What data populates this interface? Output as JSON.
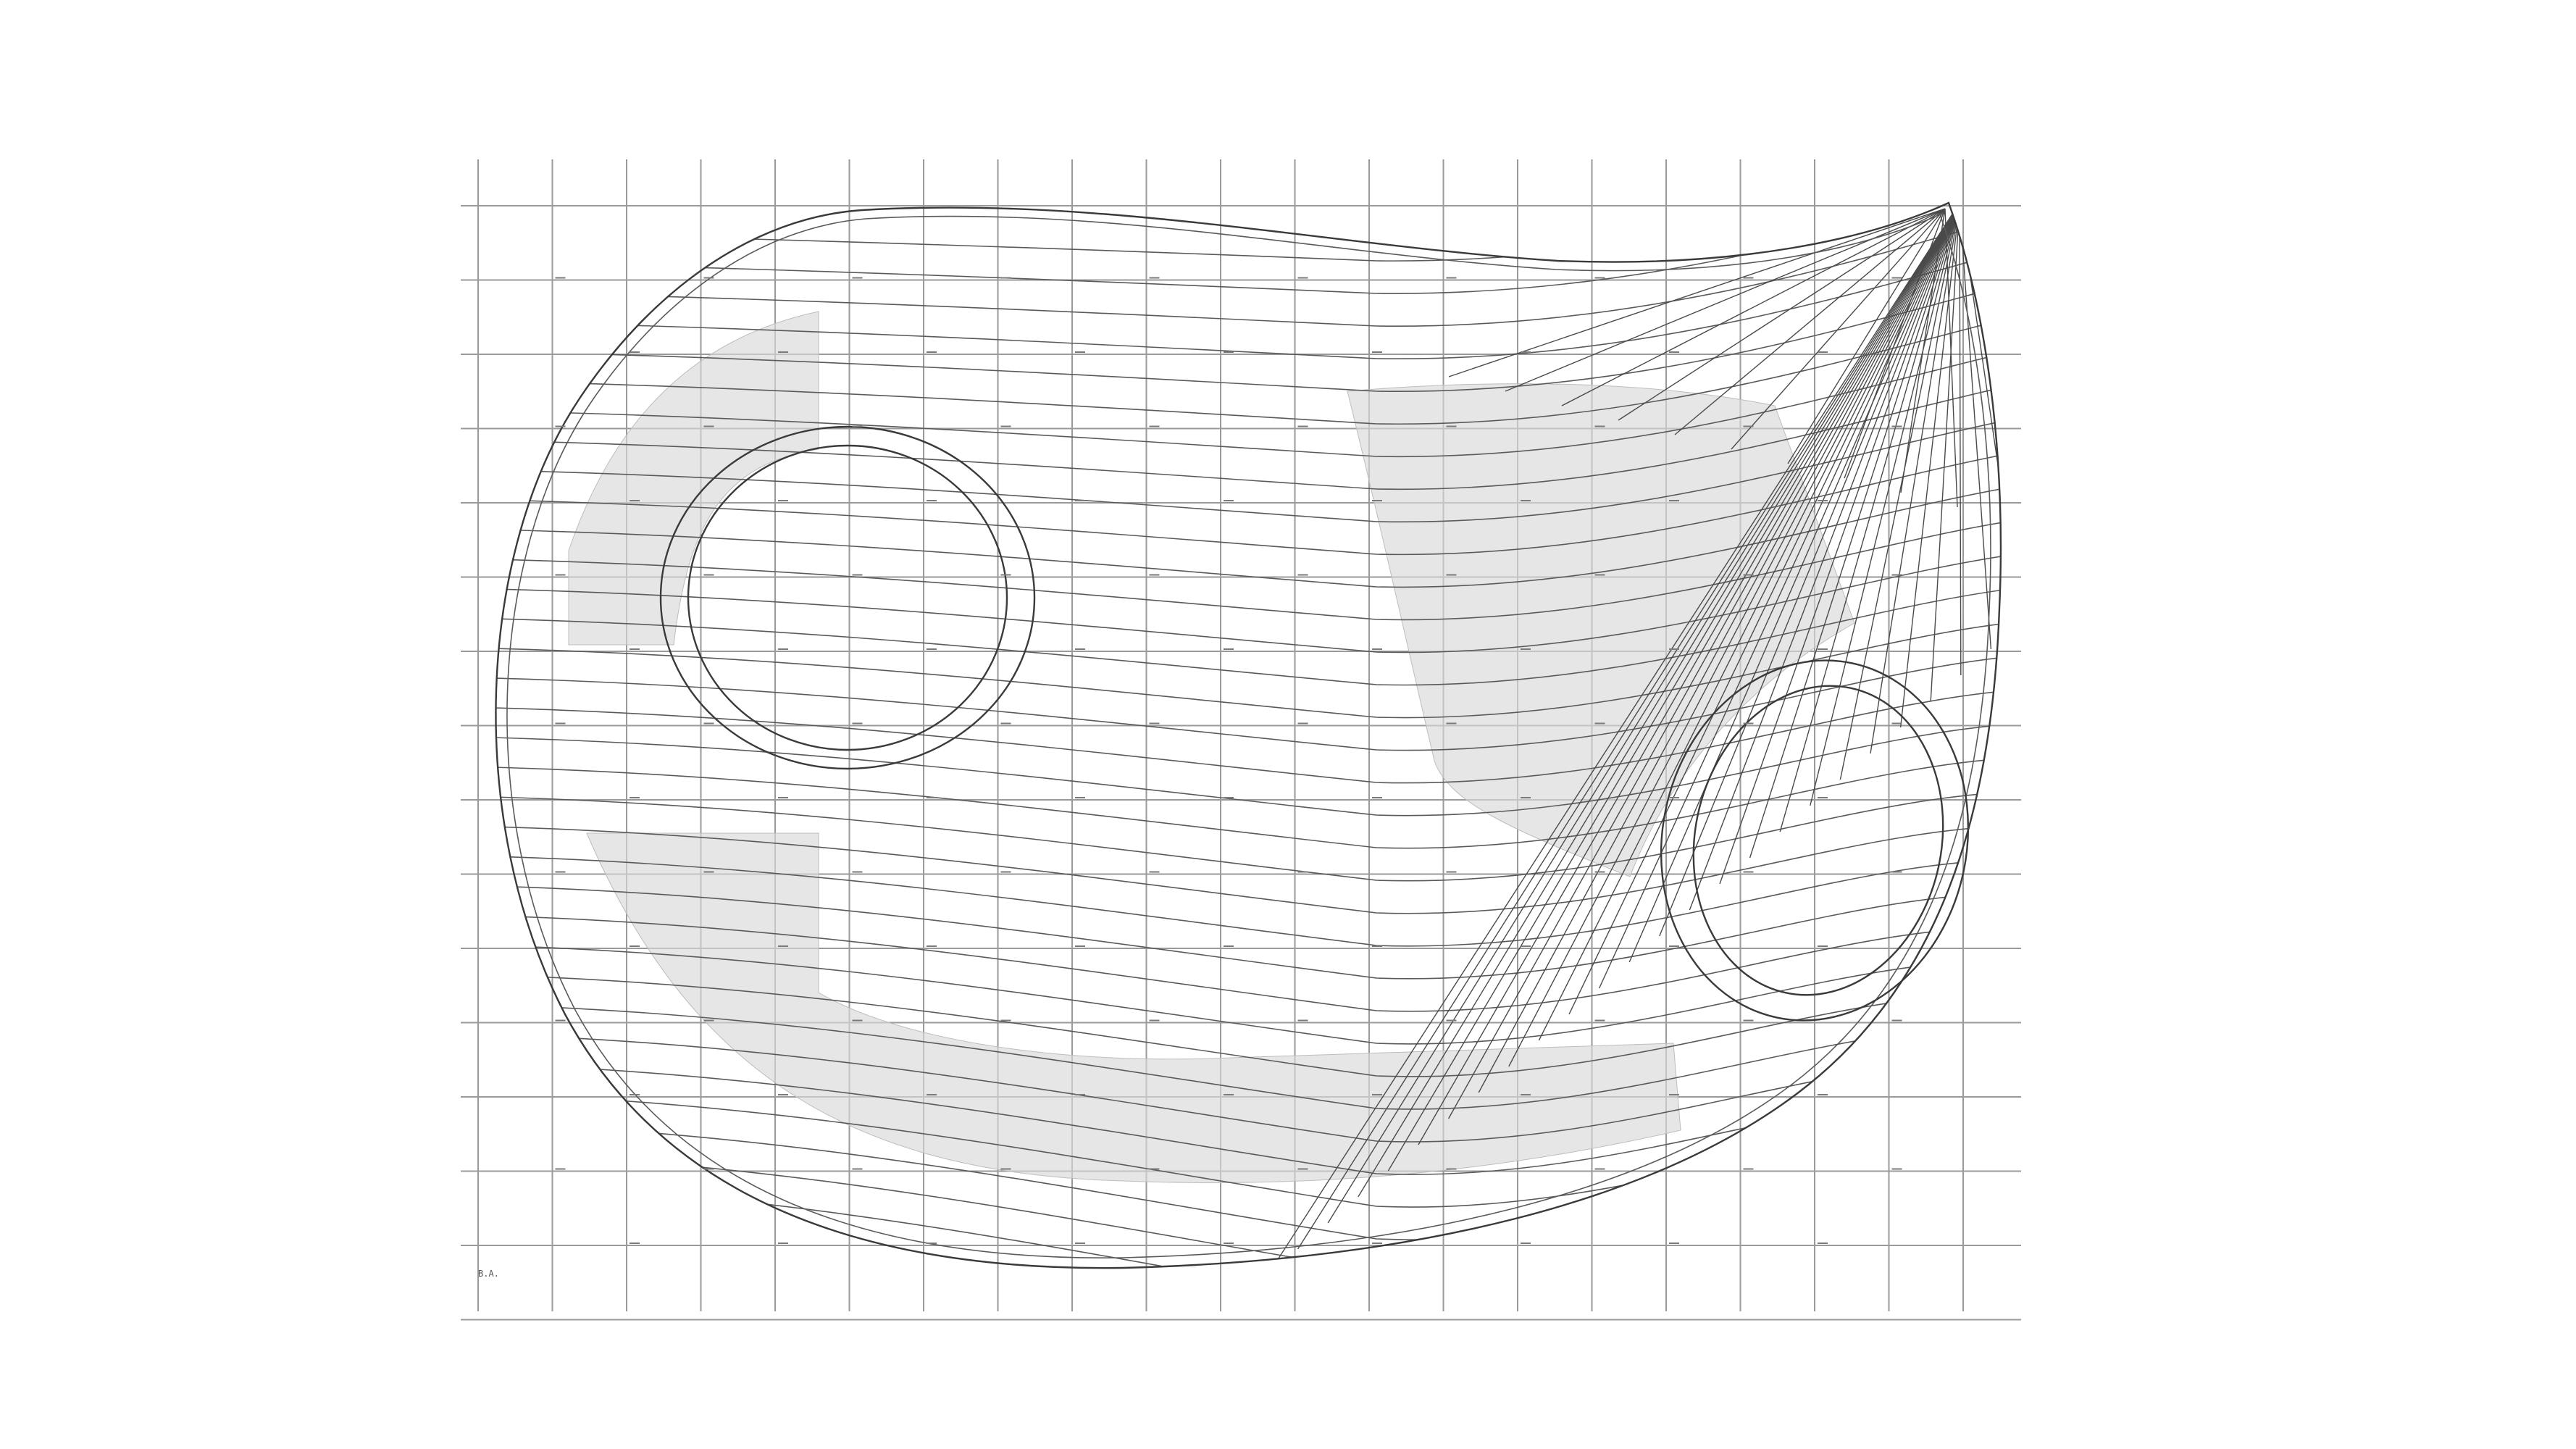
{
  "drawing": {
    "corner_label": "B.A."
  },
  "colors": {
    "background": "#ffffff",
    "grid": "#9a9a9a",
    "linework": "#4a4a4a",
    "shading": "#d9d9d9"
  }
}
